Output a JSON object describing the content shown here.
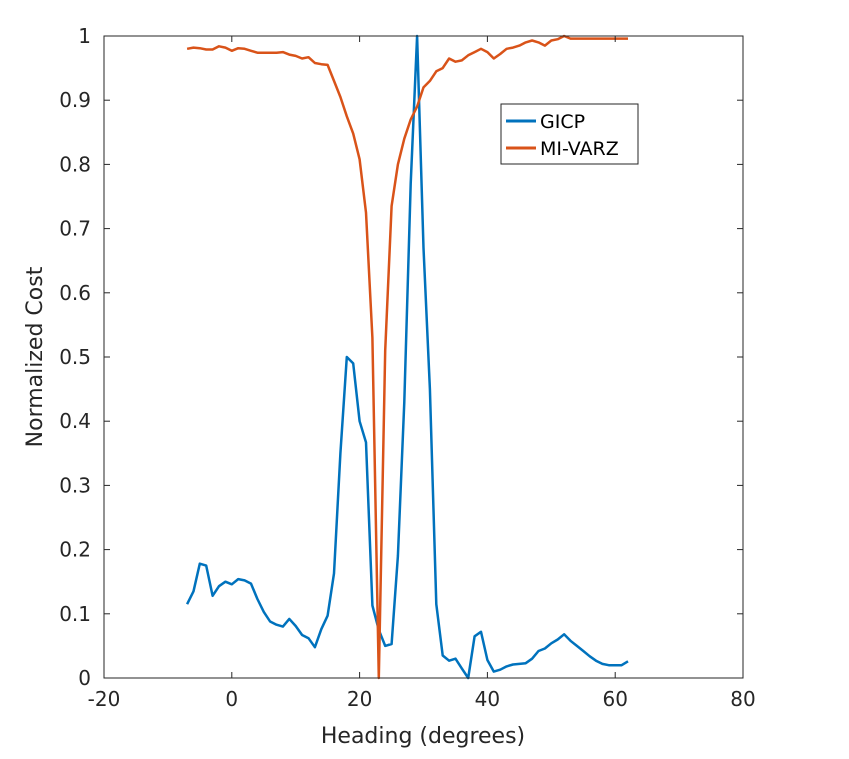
{
  "chart_data": {
    "type": "line",
    "xlabel": "Heading (degrees)",
    "ylabel": "Normalized Cost",
    "xlim": [
      -20,
      80
    ],
    "ylim": [
      0,
      1
    ],
    "xticks": [
      "-20",
      "0",
      "20",
      "40",
      "60",
      "80"
    ],
    "yticks": [
      "0",
      "0.1",
      "0.2",
      "0.3",
      "0.4",
      "0.5",
      "0.6",
      "0.7",
      "0.8",
      "0.9",
      "1"
    ],
    "grid": false,
    "legend_position": "top-right",
    "series": [
      {
        "name": "GICP",
        "color": "#0072BD",
        "x": [
          -7,
          -6,
          -5,
          -4,
          -3,
          -2,
          -1,
          0,
          1,
          2,
          3,
          4,
          5,
          6,
          7,
          8,
          9,
          10,
          11,
          12,
          13,
          14,
          15,
          16,
          17,
          18,
          19,
          20,
          21,
          22,
          23,
          24,
          25,
          26,
          27,
          28,
          29,
          30,
          31,
          32,
          33,
          34,
          35,
          36,
          37,
          38,
          39,
          40,
          41,
          42,
          43,
          44,
          45,
          46,
          47,
          48,
          49,
          50,
          51,
          52,
          53,
          54,
          55,
          56,
          57,
          58,
          59,
          60,
          61,
          62
        ],
        "y": [
          0.115,
          0.135,
          0.178,
          0.175,
          0.128,
          0.143,
          0.15,
          0.146,
          0.154,
          0.152,
          0.147,
          0.123,
          0.103,
          0.088,
          0.083,
          0.08,
          0.092,
          0.081,
          0.067,
          0.062,
          0.048,
          0.076,
          0.097,
          0.163,
          0.35,
          0.5,
          0.49,
          0.4,
          0.367,
          0.113,
          0.075,
          0.05,
          0.053,
          0.19,
          0.43,
          0.77,
          1.0,
          0.67,
          0.45,
          0.115,
          0.035,
          0.027,
          0.03,
          0.015,
          0.0,
          0.065,
          0.072,
          0.028,
          0.01,
          0.013,
          0.018,
          0.021,
          0.022,
          0.023,
          0.03,
          0.042,
          0.046,
          0.054,
          0.06,
          0.068,
          0.058,
          0.05,
          0.042,
          0.034,
          0.027,
          0.022,
          0.02,
          0.02,
          0.02,
          0.026
        ]
      },
      {
        "name": "MI-VARZ",
        "color": "#D95319",
        "x": [
          -7,
          -6,
          -5,
          -4,
          -3,
          -2,
          -1,
          0,
          1,
          2,
          3,
          4,
          5,
          6,
          7,
          8,
          9,
          10,
          11,
          12,
          13,
          14,
          15,
          16,
          17,
          18,
          19,
          20,
          21,
          22,
          23,
          24,
          25,
          26,
          27,
          28,
          29,
          30,
          31,
          32,
          33,
          34,
          35,
          36,
          37,
          38,
          39,
          40,
          41,
          42,
          43,
          44,
          45,
          46,
          47,
          48,
          49,
          50,
          51,
          52,
          53,
          54,
          55,
          56,
          57,
          58,
          59,
          60,
          61,
          62
        ],
        "y": [
          0.98,
          0.982,
          0.981,
          0.979,
          0.979,
          0.984,
          0.982,
          0.977,
          0.981,
          0.98,
          0.977,
          0.974,
          0.974,
          0.974,
          0.974,
          0.975,
          0.971,
          0.969,
          0.965,
          0.967,
          0.958,
          0.956,
          0.955,
          0.93,
          0.905,
          0.875,
          0.848,
          0.808,
          0.725,
          0.53,
          0.0,
          0.51,
          0.735,
          0.8,
          0.84,
          0.87,
          0.89,
          0.92,
          0.93,
          0.945,
          0.95,
          0.965,
          0.96,
          0.962,
          0.97,
          0.975,
          0.98,
          0.975,
          0.965,
          0.972,
          0.98,
          0.982,
          0.985,
          0.99,
          0.993,
          0.99,
          0.985,
          0.993,
          0.995,
          1.0,
          0.996,
          0.996,
          0.996,
          0.996,
          0.996,
          0.996,
          0.996,
          0.996,
          0.996,
          0.996
        ]
      }
    ]
  }
}
